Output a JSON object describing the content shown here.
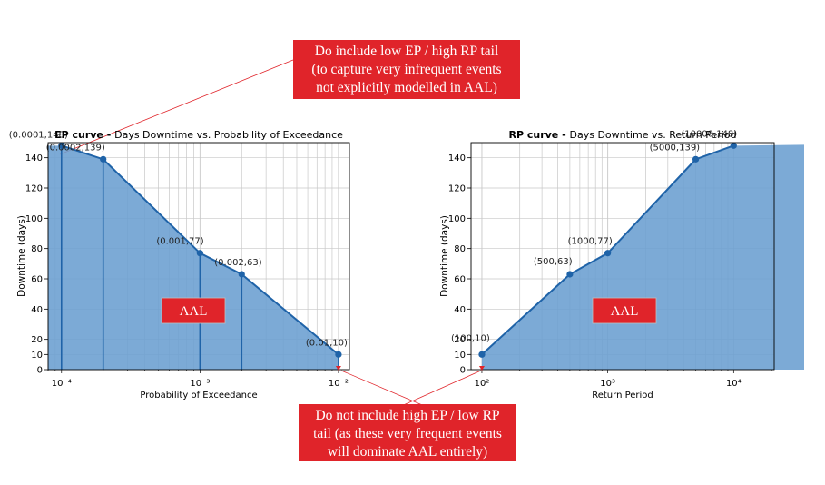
{
  "colors": {
    "fill": "#6a9ed0",
    "line": "#1f63a8",
    "marker": "#1f63a8",
    "callout_bg": "#e0242a",
    "tail_marker": "#e0242a",
    "aal_border": "#c0c0c0"
  },
  "annotations": {
    "top_callout": [
      "Do include low EP / high RP tail",
      "(to capture very infrequent events",
      "not explicitly modelled in AAL)"
    ],
    "bottom_callout": [
      "Do not include high EP / low RP",
      "tail (as these very frequent events",
      "will dominate AAL entirely)"
    ]
  },
  "chart_data": [
    {
      "type": "area",
      "title_bold": "EP curve - ",
      "title": "Days Downtime vs. Probability of Exceedance",
      "xlabel": "Probability of Exceedance",
      "ylabel": "Downtime (days)",
      "xscale": "log",
      "xlim": [
        8e-05,
        0.012
      ],
      "ylim": [
        0,
        150
      ],
      "yticks": [
        0,
        10,
        20,
        40,
        60,
        80,
        100,
        120,
        140
      ],
      "xticks": [
        0.0001,
        0.001,
        0.01
      ],
      "xtick_labels": [
        "10⁻⁴",
        "10⁻³",
        "10⁻²"
      ],
      "grid": true,
      "area_label": "AAL",
      "x": [
        0.0001,
        0.0002,
        0.001,
        0.002,
        0.01
      ],
      "y": [
        148,
        139,
        77,
        63,
        10
      ],
      "point_labels": [
        "(0.0001,148)",
        "(0.0002,139)",
        "(0.001,77)",
        "(0.002,63)",
        "(0.01,10)"
      ],
      "tail_marker": 0.01
    },
    {
      "type": "area",
      "title_bold": "RP curve - ",
      "title": "Days Downtime vs. Return Period",
      "xlabel": "Return Period",
      "ylabel": "Downtime (days)",
      "xscale": "log",
      "xlim": [
        82,
        21000
      ],
      "ylim": [
        0,
        150
      ],
      "yticks": [
        0,
        10,
        20,
        40,
        60,
        80,
        100,
        120,
        140
      ],
      "xticks": [
        100,
        1000,
        10000
      ],
      "xtick_labels": [
        "10²",
        "10³",
        "10⁴"
      ],
      "grid": true,
      "area_label": "AAL",
      "x": [
        100,
        500,
        1000,
        5000,
        10000
      ],
      "y": [
        10,
        63,
        77,
        139,
        148
      ],
      "point_labels": [
        "(100,10)",
        "(500,63)",
        "(1000,77)",
        "(5000,139)",
        "(10000,148)"
      ],
      "tail_marker": 100
    }
  ]
}
